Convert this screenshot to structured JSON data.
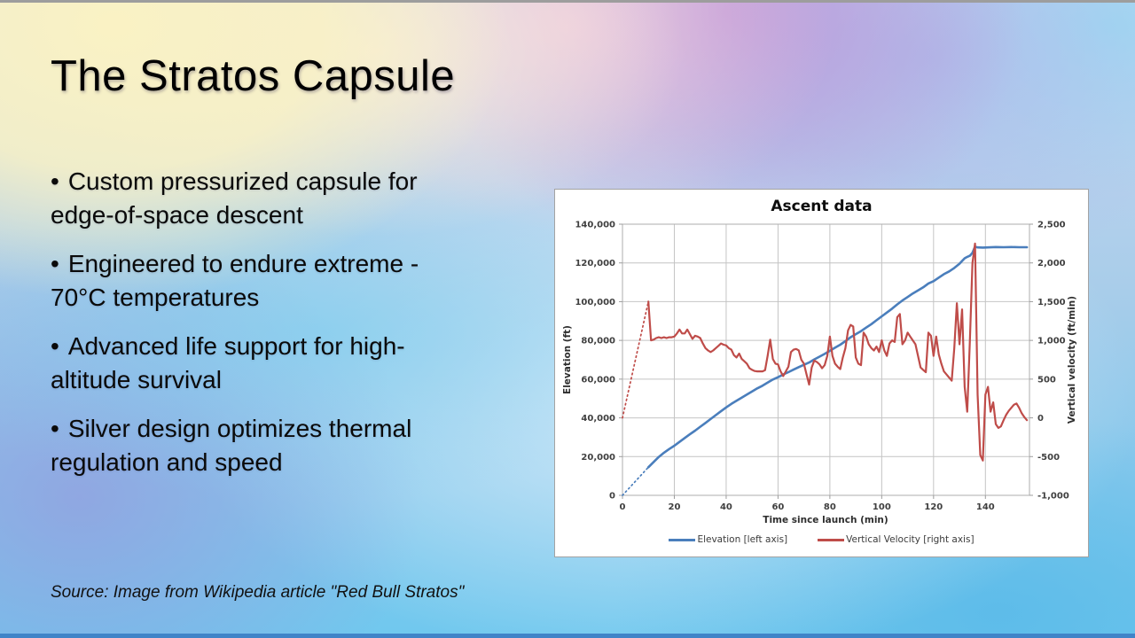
{
  "slide": {
    "title": "The Stratos Capsule",
    "bullet_char": "•",
    "bullets": [
      "Custom pressurized capsule for\nedge-of-space descent",
      "Engineered to endure extreme -\n70°C temperatures",
      "Advanced life support for high-\naltitude survival",
      "Silver design optimizes thermal\nregulation and speed"
    ],
    "source": "Source: Image from Wikipedia article \"Red Bull Stratos\""
  },
  "chart_data": {
    "type": "line",
    "title": "Ascent data",
    "xlabel": "Time since launch (min)",
    "ylabel_left": "Elevation (ft)",
    "ylabel_right": "Vertical velocity (ft/min)",
    "x_range": [
      0,
      157
    ],
    "x_ticks": [
      0,
      20,
      40,
      60,
      80,
      100,
      120,
      140
    ],
    "y_left_range": [
      0,
      140000
    ],
    "y_left_ticks": [
      0,
      20000,
      40000,
      60000,
      80000,
      100000,
      120000,
      140000
    ],
    "y_right_range": [
      -1000,
      2500
    ],
    "y_right_ticks": [
      -1000,
      -500,
      0,
      500,
      1000,
      1500,
      2000,
      2500
    ],
    "grid": true,
    "legend_position": "bottom",
    "colors": {
      "grid": "#c4c4c4",
      "axis": "#9c9c9c",
      "plot_border": "#aeaeae"
    },
    "series": [
      {
        "name": "Elevation [left axis]",
        "axis": "left",
        "color": "#4a7ebc",
        "stroke_width": 2.6,
        "lead_in_dotted": [
          [
            0,
            0
          ],
          [
            10,
            14500
          ]
        ],
        "points": [
          [
            10,
            14500
          ],
          [
            12,
            17200
          ],
          [
            14,
            19800
          ],
          [
            16,
            22000
          ],
          [
            18,
            23900
          ],
          [
            20,
            25600
          ],
          [
            22,
            27600
          ],
          [
            24,
            29600
          ],
          [
            26,
            31500
          ],
          [
            28,
            33400
          ],
          [
            30,
            35400
          ],
          [
            32,
            37400
          ],
          [
            34,
            39400
          ],
          [
            36,
            41400
          ],
          [
            38,
            43400
          ],
          [
            40,
            45400
          ],
          [
            42,
            47200
          ],
          [
            44,
            48800
          ],
          [
            46,
            50400
          ],
          [
            48,
            52000
          ],
          [
            50,
            53600
          ],
          [
            52,
            55200
          ],
          [
            54,
            56600
          ],
          [
            56,
            58200
          ],
          [
            58,
            59800
          ],
          [
            60,
            61000
          ],
          [
            62,
            62400
          ],
          [
            64,
            63600
          ],
          [
            66,
            64900
          ],
          [
            68,
            66200
          ],
          [
            70,
            67400
          ],
          [
            72,
            68600
          ],
          [
            74,
            70200
          ],
          [
            76,
            71600
          ],
          [
            78,
            73000
          ],
          [
            80,
            74600
          ],
          [
            82,
            76200
          ],
          [
            84,
            77800
          ],
          [
            86,
            79600
          ],
          [
            88,
            81600
          ],
          [
            90,
            83200
          ],
          [
            92,
            84800
          ],
          [
            94,
            86600
          ],
          [
            96,
            88400
          ],
          [
            98,
            90400
          ],
          [
            100,
            92400
          ],
          [
            102,
            94400
          ],
          [
            104,
            96400
          ],
          [
            106,
            98600
          ],
          [
            108,
            100600
          ],
          [
            110,
            102400
          ],
          [
            112,
            104200
          ],
          [
            114,
            105800
          ],
          [
            116,
            107400
          ],
          [
            118,
            109400
          ],
          [
            120,
            110600
          ],
          [
            122,
            112400
          ],
          [
            124,
            114200
          ],
          [
            126,
            115600
          ],
          [
            128,
            117400
          ],
          [
            130,
            119600
          ],
          [
            131,
            121000
          ],
          [
            132,
            122400
          ],
          [
            133,
            123100
          ],
          [
            134,
            123700
          ],
          [
            135,
            125200
          ],
          [
            136,
            128400
          ],
          [
            137,
            128000
          ],
          [
            139,
            127900
          ],
          [
            141,
            128000
          ],
          [
            144,
            128200
          ],
          [
            147,
            128100
          ],
          [
            150,
            128200
          ],
          [
            153,
            128100
          ],
          [
            156,
            128100
          ]
        ]
      },
      {
        "name": "Vertical Velocity [right axis]",
        "axis": "right",
        "color": "#bf4c49",
        "stroke_width": 2.2,
        "lead_in_dotted": [
          [
            0,
            0
          ],
          [
            10,
            1500
          ]
        ],
        "points": [
          [
            10,
            1500
          ],
          [
            11,
            1000
          ],
          [
            12,
            1010
          ],
          [
            13,
            1030
          ],
          [
            14,
            1040
          ],
          [
            15,
            1030
          ],
          [
            16,
            1040
          ],
          [
            17,
            1030
          ],
          [
            18,
            1040
          ],
          [
            19,
            1040
          ],
          [
            20,
            1050
          ],
          [
            21,
            1090
          ],
          [
            22,
            1140
          ],
          [
            23,
            1090
          ],
          [
            24,
            1090
          ],
          [
            25,
            1140
          ],
          [
            26,
            1080
          ],
          [
            27,
            1020
          ],
          [
            28,
            1060
          ],
          [
            29,
            1050
          ],
          [
            30,
            1030
          ],
          [
            31,
            960
          ],
          [
            32,
            900
          ],
          [
            33,
            870
          ],
          [
            34,
            850
          ],
          [
            35,
            870
          ],
          [
            36,
            900
          ],
          [
            37,
            930
          ],
          [
            38,
            960
          ],
          [
            39,
            945
          ],
          [
            40,
            935
          ],
          [
            41,
            900
          ],
          [
            42,
            880
          ],
          [
            43,
            810
          ],
          [
            44,
            780
          ],
          [
            45,
            830
          ],
          [
            46,
            760
          ],
          [
            47,
            730
          ],
          [
            48,
            700
          ],
          [
            49,
            640
          ],
          [
            50,
            620
          ],
          [
            51,
            605
          ],
          [
            52,
            600
          ],
          [
            53,
            600
          ],
          [
            54,
            600
          ],
          [
            55,
            615
          ],
          [
            56,
            800
          ],
          [
            57,
            1010
          ],
          [
            58,
            760
          ],
          [
            59,
            700
          ],
          [
            60,
            690
          ],
          [
            61,
            600
          ],
          [
            62,
            540
          ],
          [
            63,
            600
          ],
          [
            64,
            660
          ],
          [
            65,
            850
          ],
          [
            66,
            880
          ],
          [
            67,
            890
          ],
          [
            68,
            870
          ],
          [
            69,
            750
          ],
          [
            70,
            700
          ],
          [
            71,
            560
          ],
          [
            72,
            430
          ],
          [
            73,
            650
          ],
          [
            74,
            740
          ],
          [
            75,
            720
          ],
          [
            76,
            690
          ],
          [
            77,
            640
          ],
          [
            78,
            680
          ],
          [
            79,
            800
          ],
          [
            80,
            1050
          ],
          [
            81,
            800
          ],
          [
            82,
            700
          ],
          [
            83,
            660
          ],
          [
            84,
            630
          ],
          [
            85,
            780
          ],
          [
            86,
            900
          ],
          [
            87,
            1130
          ],
          [
            88,
            1200
          ],
          [
            89,
            1180
          ],
          [
            90,
            780
          ],
          [
            91,
            700
          ],
          [
            92,
            680
          ],
          [
            93,
            1100
          ],
          [
            94,
            1050
          ],
          [
            95,
            950
          ],
          [
            96,
            900
          ],
          [
            97,
            870
          ],
          [
            98,
            920
          ],
          [
            99,
            850
          ],
          [
            100,
            1000
          ],
          [
            101,
            870
          ],
          [
            102,
            800
          ],
          [
            103,
            960
          ],
          [
            104,
            1000
          ],
          [
            105,
            980
          ],
          [
            106,
            1300
          ],
          [
            107,
            1340
          ],
          [
            108,
            950
          ],
          [
            109,
            1000
          ],
          [
            110,
            1100
          ],
          [
            111,
            1050
          ],
          [
            112,
            1000
          ],
          [
            113,
            950
          ],
          [
            114,
            800
          ],
          [
            115,
            650
          ],
          [
            116,
            620
          ],
          [
            117,
            590
          ],
          [
            118,
            1100
          ],
          [
            119,
            1060
          ],
          [
            120,
            800
          ],
          [
            121,
            1050
          ],
          [
            122,
            820
          ],
          [
            123,
            700
          ],
          [
            124,
            600
          ],
          [
            125,
            560
          ],
          [
            126,
            520
          ],
          [
            127,
            480
          ],
          [
            128,
            900
          ],
          [
            129,
            1480
          ],
          [
            130,
            950
          ],
          [
            131,
            1400
          ],
          [
            132,
            400
          ],
          [
            133,
            80
          ],
          [
            134,
            1000
          ],
          [
            135,
            2000
          ],
          [
            136,
            2250
          ],
          [
            137,
            300
          ],
          [
            138,
            -480
          ],
          [
            139,
            -550
          ],
          [
            140,
            300
          ],
          [
            141,
            400
          ],
          [
            142,
            80
          ],
          [
            143,
            200
          ],
          [
            144,
            -80
          ],
          [
            145,
            -130
          ],
          [
            146,
            -110
          ],
          [
            147,
            -30
          ],
          [
            148,
            40
          ],
          [
            149,
            90
          ],
          [
            150,
            130
          ],
          [
            151,
            170
          ],
          [
            152,
            185
          ],
          [
            153,
            130
          ],
          [
            154,
            60
          ],
          [
            155,
            10
          ],
          [
            156,
            -30
          ]
        ]
      }
    ]
  }
}
